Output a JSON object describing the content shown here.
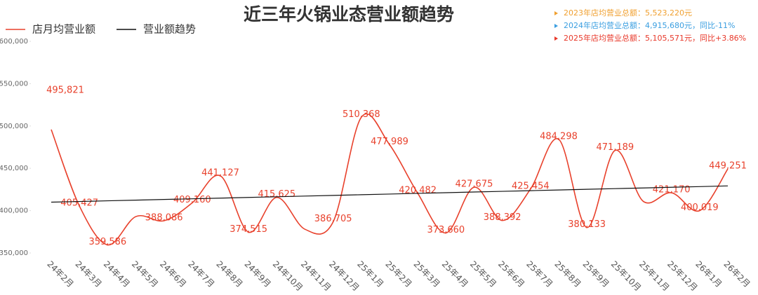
{
  "chart_data": {
    "type": "line",
    "title": "近三年火锅业态营业额趋势",
    "annotations": [
      {
        "text": "2023年店均营业总额：5,523,220元",
        "color": "#f0a030"
      },
      {
        "text": "2024年店均营业总额：4,915,680元，同比-11%",
        "color": "#3a9ee0"
      },
      {
        "text": "2025年店均营业总额：5,105,571元，同比+3.86%",
        "color": "#e8382a"
      }
    ],
    "categories": [
      "24年2月",
      "24年3月",
      "24年4月",
      "24年5月",
      "24年6月",
      "24年7月",
      "24年8月",
      "24年9月",
      "24年10月",
      "24年11月",
      "24年12月",
      "25年1月",
      "25年2月",
      "25年3月",
      "25年4月",
      "25年5月",
      "25年6月",
      "25年7月",
      "25年8月",
      "25年9月",
      "25年10月",
      "25年11月",
      "25年12月",
      "26年1月",
      "26年2月"
    ],
    "series": [
      {
        "name": "店月均营业额",
        "color": "#e8412c",
        "smooth": true,
        "values": [
          495821,
          405427,
          359586,
          393000,
          388086,
          409160,
          441127,
          374515,
          415625,
          378000,
          386705,
          510368,
          477989,
          420482,
          373660,
          427675,
          388392,
          425454,
          484298,
          380133,
          471189,
          411000,
          421170,
          400019,
          449251
        ],
        "value_labels": [
          "495,821",
          "405,427",
          "359,586",
          null,
          "388,086",
          "409,160",
          "441,127",
          "374,515",
          "415,625",
          null,
          "386,705",
          "510,368",
          "477,989",
          "420,482",
          "373,660",
          "427,675",
          "388,392",
          "425,454",
          "484,298",
          "380,133",
          "471,189",
          null,
          "421,170",
          "400,019",
          "449,251"
        ]
      },
      {
        "name": "营业额趋势",
        "color": "#111111",
        "smooth": false,
        "values": [
          410000,
          410800,
          411600,
          412400,
          413200,
          414000,
          414800,
          415600,
          416400,
          417200,
          418000,
          418800,
          419600,
          420400,
          421200,
          422000,
          422800,
          423600,
          424400,
          425200,
          426000,
          426800,
          427600,
          428400,
          429200
        ]
      }
    ],
    "ylim": [
      350000,
      600000
    ],
    "yticks": [
      {
        "value": 350000,
        "label": "350,000"
      },
      {
        "value": 400000,
        "label": "400,000"
      },
      {
        "value": 450000,
        "label": "450,000"
      },
      {
        "value": 500000,
        "label": "500,000"
      },
      {
        "value": 550000,
        "label": "550,000"
      },
      {
        "value": 600000,
        "label": "600,000"
      }
    ],
    "grid": false
  }
}
